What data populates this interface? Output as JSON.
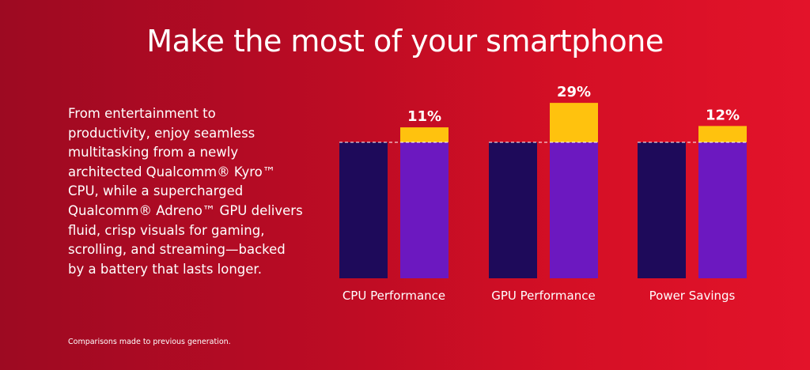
{
  "title": "Make the most of your smartphone",
  "description_lines": [
    "From entertainment to",
    "productivity, enjoy seamless",
    "multitasking from a newly",
    "architected Qualcomm® Kyro™",
    "CPU, while a supercharged",
    "Qualcomm® Adreno™ GPU delivers",
    "fluid, crisp visuals for gaming,",
    "scrolling, and streaming—backed",
    "by a battery that lasts longer."
  ],
  "footnote": "Comparisons made to previous generation.",
  "colors": {
    "previous_bar": "#1e0a5a",
    "new_bar": "#6c18c0",
    "improvement": "#ffc20e",
    "baseline_dash": "#ffffff"
  },
  "chart_data": {
    "type": "bar",
    "categories": [
      "CPU Performance",
      "GPU Performance",
      "Power Savings"
    ],
    "series": [
      {
        "values": [
          100,
          100,
          100
        ]
      },
      {
        "values": [
          111,
          129,
          112
        ]
      }
    ],
    "labels": [
      "11%",
      "29%",
      "12%"
    ],
    "improvement_percent": [
      11,
      29,
      12
    ],
    "baseline_dashed_line": true,
    "title": "",
    "xlabel": "",
    "ylabel": ""
  }
}
